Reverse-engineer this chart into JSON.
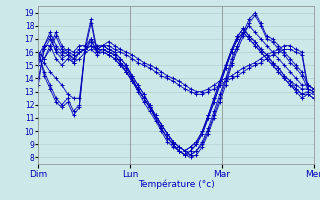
{
  "xlabel": "Température (°c)",
  "bg_color": "#cce8e8",
  "grid_color": "#aacccc",
  "line_color": "#0000bb",
  "ylim": [
    7.5,
    19.5
  ],
  "yticks": [
    8,
    9,
    10,
    11,
    12,
    13,
    14,
    15,
    16,
    17,
    18,
    19
  ],
  "xlim": [
    0,
    288
  ],
  "day_positions": [
    0,
    96,
    192,
    288
  ],
  "day_labels": [
    "Dim",
    "Lun",
    "Mar",
    "Mer"
  ],
  "series": [
    [
      16.0,
      15.5,
      16.5,
      17.5,
      16.5,
      16.0,
      15.5,
      16.0,
      16.2,
      16.5,
      16.2,
      16.5,
      16.8,
      16.5,
      16.2,
      16.0,
      15.8,
      15.5,
      15.2,
      15.0,
      14.8,
      14.5,
      14.2,
      14.0,
      13.8,
      13.5,
      13.2,
      13.0,
      13.0,
      13.2,
      13.5,
      13.8,
      14.0,
      14.2,
      14.5,
      14.8,
      15.0,
      15.2,
      15.5,
      15.8,
      16.0,
      16.2,
      16.5,
      16.5,
      16.2,
      16.0,
      13.5,
      13.2
    ],
    [
      16.0,
      15.5,
      16.2,
      17.2,
      16.2,
      15.8,
      15.2,
      16.0,
      16.2,
      16.5,
      16.2,
      16.5,
      16.5,
      16.2,
      16.0,
      15.8,
      15.5,
      15.2,
      15.0,
      14.8,
      14.5,
      14.2,
      14.0,
      13.8,
      13.5,
      13.2,
      13.0,
      12.8,
      12.8,
      13.0,
      13.2,
      13.5,
      13.8,
      14.0,
      14.2,
      14.5,
      14.8,
      15.0,
      15.2,
      15.5,
      15.8,
      16.0,
      16.2,
      16.2,
      16.0,
      15.8,
      13.2,
      13.0
    ],
    [
      16.0,
      14.5,
      13.5,
      12.5,
      12.0,
      12.5,
      11.5,
      12.0,
      16.5,
      18.5,
      16.2,
      16.5,
      16.2,
      16.0,
      15.5,
      15.0,
      14.2,
      13.5,
      12.8,
      12.0,
      11.2,
      10.5,
      9.8,
      9.2,
      8.8,
      8.5,
      8.2,
      8.5,
      9.0,
      10.0,
      11.2,
      12.5,
      13.8,
      15.2,
      16.5,
      17.5,
      18.5,
      19.0,
      18.2,
      17.2,
      17.0,
      16.5,
      16.0,
      15.5,
      15.0,
      14.5,
      13.5,
      13.2
    ],
    [
      16.0,
      14.2,
      13.2,
      12.2,
      11.8,
      12.2,
      11.2,
      11.8,
      16.2,
      18.2,
      16.0,
      16.2,
      16.0,
      15.8,
      15.2,
      14.8,
      14.0,
      13.2,
      12.5,
      11.8,
      11.0,
      10.2,
      9.5,
      9.0,
      8.5,
      8.2,
      8.0,
      8.2,
      8.8,
      9.8,
      11.0,
      12.2,
      13.5,
      15.0,
      16.2,
      17.2,
      18.2,
      18.8,
      18.0,
      17.0,
      16.8,
      16.2,
      15.8,
      15.2,
      14.8,
      14.2,
      13.2,
      13.0
    ],
    [
      15.5,
      15.2,
      14.5,
      14.0,
      13.5,
      12.8,
      12.5,
      12.5,
      16.2,
      17.0,
      16.0,
      16.2,
      16.0,
      15.8,
      15.2,
      14.5,
      13.8,
      13.0,
      12.2,
      11.5,
      10.8,
      10.0,
      9.2,
      8.8,
      8.5,
      8.2,
      8.2,
      8.5,
      9.2,
      10.2,
      11.5,
      12.8,
      14.0,
      15.5,
      16.5,
      17.5,
      18.0,
      17.5,
      17.0,
      16.5,
      16.0,
      15.5,
      15.0,
      14.5,
      14.0,
      13.5,
      13.5,
      13.2
    ],
    [
      15.8,
      16.5,
      16.5,
      15.5,
      15.0,
      15.5,
      15.2,
      15.5,
      16.0,
      16.2,
      15.8,
      16.0,
      15.8,
      15.5,
      15.0,
      14.5,
      13.8,
      13.2,
      12.5,
      11.8,
      11.2,
      10.5,
      9.8,
      9.2,
      8.8,
      8.5,
      8.8,
      9.2,
      10.0,
      11.2,
      12.5,
      13.8,
      15.0,
      16.2,
      17.2,
      17.8,
      17.2,
      16.8,
      16.2,
      15.8,
      15.2,
      14.8,
      14.2,
      13.8,
      13.5,
      13.2,
      13.2,
      13.0
    ],
    [
      15.0,
      16.5,
      17.2,
      16.0,
      15.5,
      15.8,
      15.5,
      16.0,
      16.2,
      16.5,
      16.0,
      16.0,
      15.8,
      15.5,
      15.0,
      14.5,
      13.8,
      13.2,
      12.5,
      11.8,
      11.0,
      10.2,
      9.5,
      9.0,
      8.5,
      8.2,
      8.5,
      9.0,
      9.8,
      11.0,
      12.2,
      13.5,
      14.8,
      16.0,
      17.0,
      17.5,
      17.0,
      16.5,
      16.0,
      15.5,
      15.0,
      14.5,
      14.0,
      13.5,
      13.2,
      12.8,
      13.0,
      12.8
    ],
    [
      13.5,
      16.5,
      17.5,
      16.5,
      16.0,
      16.2,
      16.0,
      16.5,
      16.5,
      17.0,
      16.5,
      16.5,
      16.2,
      16.0,
      15.5,
      15.0,
      14.2,
      13.5,
      12.8,
      12.0,
      11.2,
      10.5,
      9.8,
      9.2,
      8.8,
      8.5,
      8.8,
      9.2,
      10.0,
      11.2,
      12.5,
      13.8,
      15.0,
      16.2,
      17.2,
      17.8,
      17.2,
      16.8,
      16.2,
      15.8,
      15.2,
      14.8,
      14.2,
      13.8,
      13.2,
      12.8,
      12.8,
      12.5
    ],
    [
      14.0,
      16.2,
      17.0,
      16.2,
      15.8,
      16.0,
      15.8,
      16.2,
      16.2,
      16.8,
      16.2,
      16.2,
      16.0,
      15.8,
      15.2,
      14.8,
      14.0,
      13.2,
      12.5,
      11.8,
      11.0,
      10.2,
      9.5,
      9.0,
      8.5,
      8.2,
      8.5,
      9.0,
      9.8,
      11.0,
      12.2,
      13.5,
      14.8,
      16.0,
      17.0,
      17.5,
      17.0,
      16.5,
      16.0,
      15.5,
      15.0,
      14.5,
      14.0,
      13.5,
      13.0,
      12.5,
      12.8,
      12.5
    ]
  ]
}
